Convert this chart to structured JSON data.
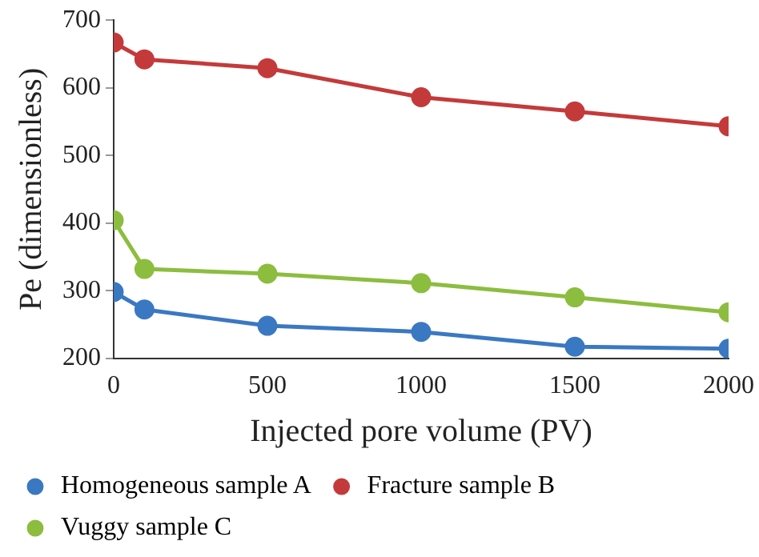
{
  "chart_data": {
    "type": "line",
    "xlabel": "Injected pore volume (PV)",
    "ylabel": "Pe (dimensionless)",
    "x": [
      0,
      100,
      500,
      1000,
      1500,
      2000
    ],
    "series": [
      {
        "name": "Homogeneous sample A",
        "color": "#3a78c2",
        "values": [
          298,
          272,
          248,
          239,
          217,
          214
        ]
      },
      {
        "name": "Fracture sample B",
        "color": "#c43a3a",
        "values": [
          667,
          642,
          629,
          586,
          565,
          543
        ]
      },
      {
        "name": "Vuggy sample C",
        "color": "#8cbd3f",
        "values": [
          404,
          332,
          325,
          311,
          290,
          268
        ]
      }
    ],
    "xlim": [
      0,
      2000
    ],
    "xticks": [
      0,
      500,
      1000,
      1500,
      2000
    ],
    "ylim": [
      200,
      700
    ],
    "yticks": [
      200,
      300,
      400,
      500,
      600,
      700
    ],
    "grid": false,
    "legend": "bottom",
    "marker": "circle",
    "line_style": "solid"
  }
}
